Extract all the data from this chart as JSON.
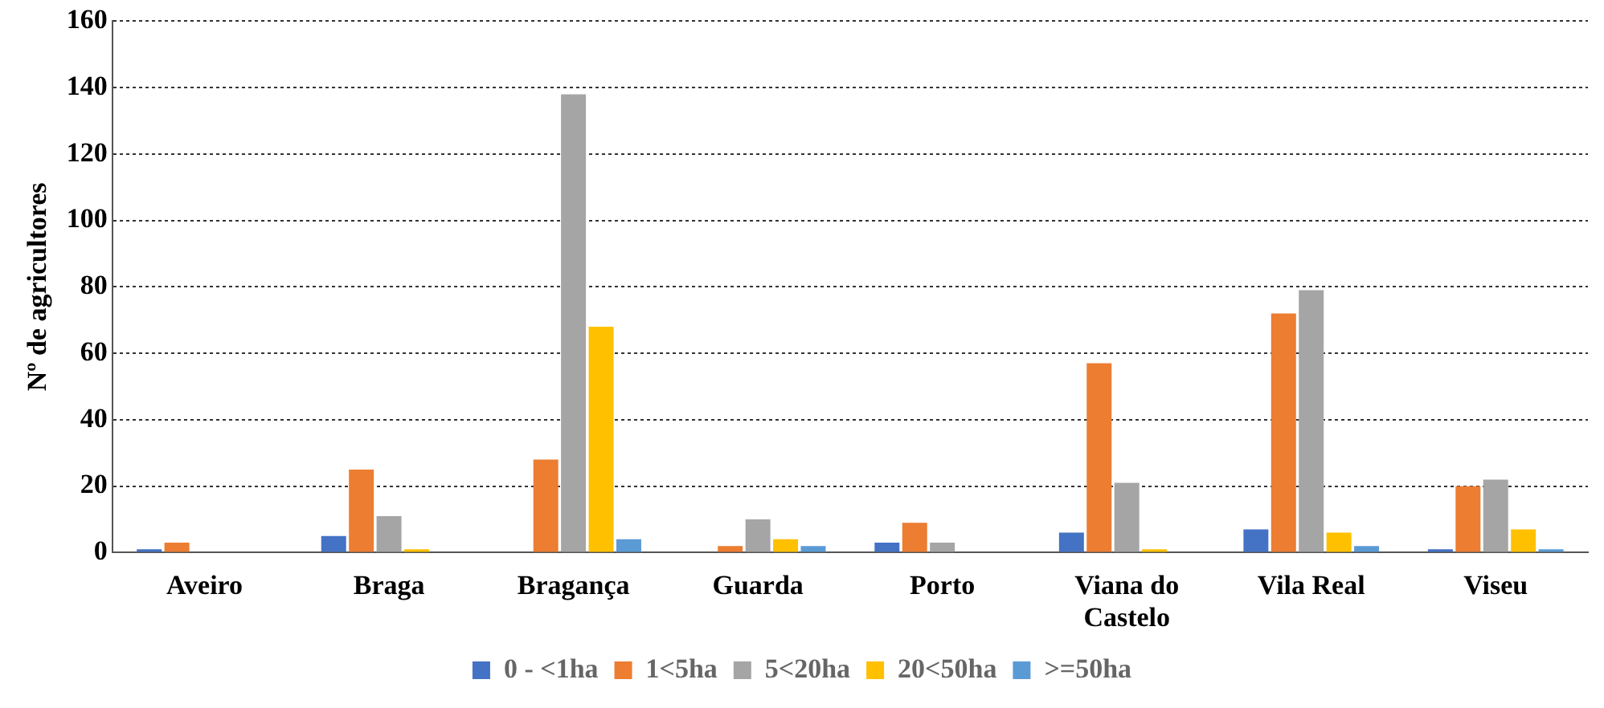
{
  "chart_data": {
    "type": "bar",
    "ylabel": "Nº de agricultores",
    "categories": [
      "Aveiro",
      "Braga",
      "Bragança",
      "Guarda",
      "Porto",
      "Viana do Castelo",
      "Vila Real",
      "Viseu"
    ],
    "series": [
      {
        "name": "0 - <1ha",
        "color": "#4472c4",
        "values": [
          1,
          5,
          0,
          0,
          3,
          6,
          7,
          1
        ]
      },
      {
        "name": "1<5ha",
        "color": "#ed7d31",
        "values": [
          3,
          25,
          28,
          2,
          9,
          57,
          72,
          20
        ]
      },
      {
        "name": "5<20ha",
        "color": "#a5a5a5",
        "values": [
          0,
          11,
          138,
          10,
          3,
          21,
          79,
          22
        ]
      },
      {
        "name": "20<50ha",
        "color": "#ffc000",
        "values": [
          0,
          1,
          68,
          4,
          0,
          1,
          6,
          7
        ]
      },
      {
        "name": ">=50ha",
        "color": "#5b9bd5",
        "values": [
          0,
          0,
          4,
          2,
          0,
          0,
          2,
          1
        ]
      }
    ],
    "ylim": [
      0,
      160
    ],
    "yticks": [
      0,
      20,
      40,
      60,
      80,
      100,
      120,
      140,
      160
    ],
    "grid": "y",
    "legend": "bottom"
  }
}
